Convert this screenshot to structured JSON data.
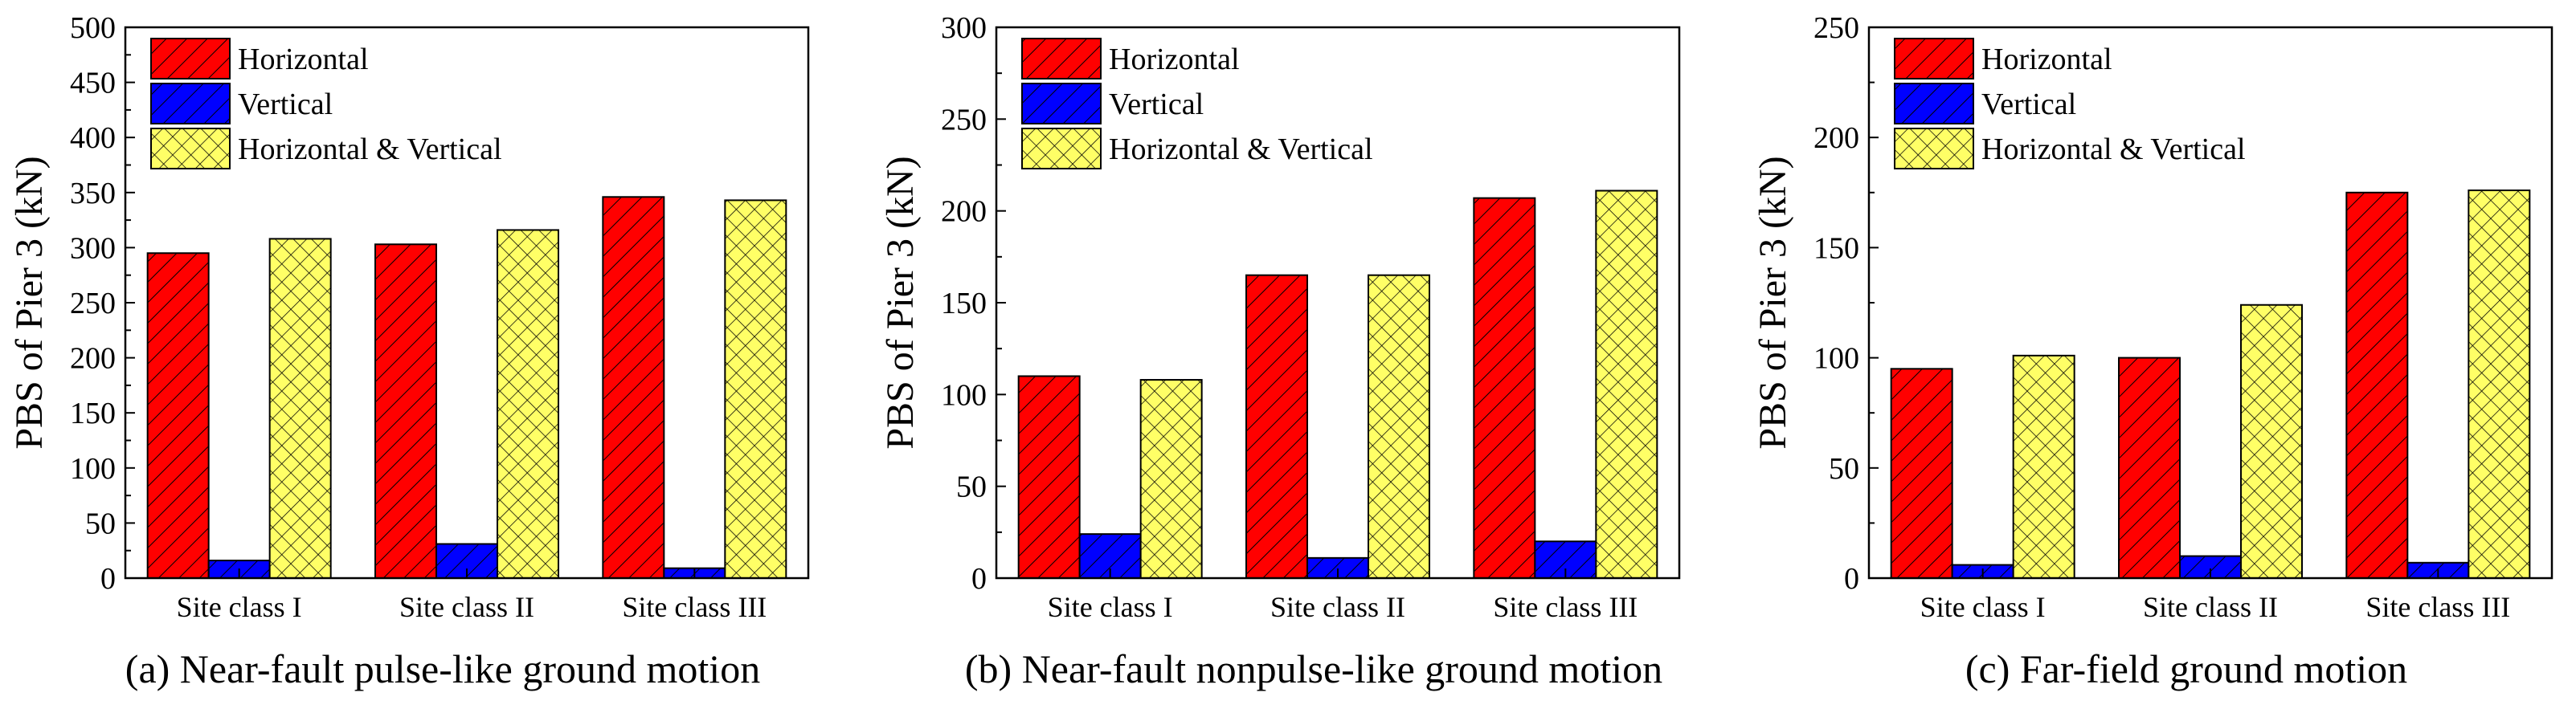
{
  "colors": {
    "horizontal": "#ff0000",
    "vertical": "#0000ff",
    "both": "#ffff66",
    "axis": "#000000"
  },
  "patterns": {
    "horizontal": "diagonal-hatch",
    "vertical": "diagonal-hatch",
    "both": "cross-hatch"
  },
  "chart_data": [
    {
      "type": "bar",
      "caption": "(a) Near-fault pulse-like ground motion",
      "ylabel": "PBS of Pier 3 (kN)",
      "categories": [
        "Site class I",
        "Site class II",
        "Site class III"
      ],
      "ylim": [
        0,
        500
      ],
      "yticks": [
        0,
        50,
        100,
        150,
        200,
        250,
        300,
        350,
        400,
        450,
        500
      ],
      "legend_position": "top-left",
      "series": [
        {
          "name": "Horizontal",
          "values": [
            295,
            303,
            346
          ]
        },
        {
          "name": "Vertical",
          "values": [
            16,
            31,
            9
          ]
        },
        {
          "name": "Horizontal & Vertical",
          "values": [
            308,
            316,
            343
          ]
        }
      ]
    },
    {
      "type": "bar",
      "caption": "(b) Near-fault nonpulse-like ground motion",
      "ylabel": "PBS of Pier 3 (kN)",
      "categories": [
        "Site class I",
        "Site class II",
        "Site class III"
      ],
      "ylim": [
        0,
        300
      ],
      "yticks": [
        0,
        50,
        100,
        150,
        200,
        250,
        300
      ],
      "legend_position": "top-left",
      "series": [
        {
          "name": "Horizontal",
          "values": [
            110,
            165,
            207
          ]
        },
        {
          "name": "Vertical",
          "values": [
            24,
            11,
            20
          ]
        },
        {
          "name": "Horizontal & Vertical",
          "values": [
            108,
            165,
            211
          ]
        }
      ]
    },
    {
      "type": "bar",
      "caption": "(c) Far-field ground motion",
      "ylabel": "PBS of Pier 3 (kN)",
      "categories": [
        "Site class I",
        "Site class II",
        "Site class III"
      ],
      "ylim": [
        0,
        250
      ],
      "yticks": [
        0,
        50,
        100,
        150,
        200,
        250
      ],
      "legend_position": "top-left",
      "series": [
        {
          "name": "Horizontal",
          "values": [
            95,
            100,
            175
          ]
        },
        {
          "name": "Vertical",
          "values": [
            6,
            10,
            7
          ]
        },
        {
          "name": "Horizontal & Vertical",
          "values": [
            101,
            124,
            176
          ]
        }
      ]
    }
  ]
}
